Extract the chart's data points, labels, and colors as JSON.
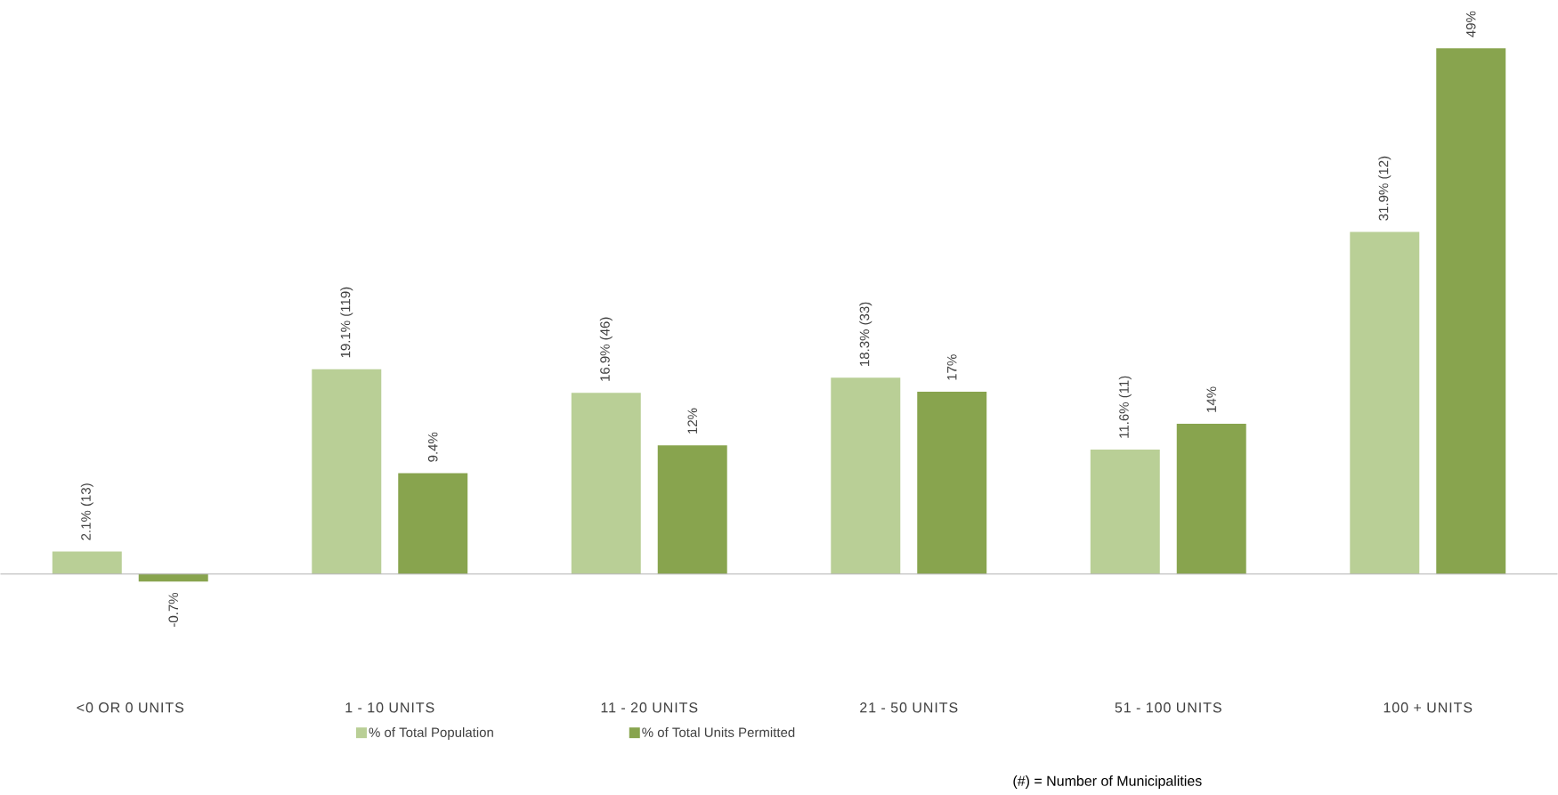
{
  "chart_data": {
    "type": "bar",
    "categories": [
      "<0 OR 0 UNITS",
      "1 - 10 UNITS",
      "11 - 20 UNITS",
      "21 - 50 UNITS",
      "51 - 100 UNITS",
      "100 + UNITS"
    ],
    "series": [
      {
        "name": "% of Total Population",
        "color": "#b9cf96",
        "values": [
          2.1,
          19.1,
          16.9,
          18.3,
          11.6,
          31.9
        ],
        "value_labels": [
          "2.1% (13)",
          "19.1% (119)",
          "16.9% (46)",
          "18.3% (33)",
          "11.6% (11)",
          "31.9% (12)"
        ]
      },
      {
        "name": "% of Total Units Permitted",
        "color": "#88a44e",
        "values": [
          -0.7,
          9.4,
          12,
          17,
          14,
          49
        ],
        "value_labels": [
          "-0.7%",
          "9.4%",
          "12%",
          "17%",
          "14%",
          "49%"
        ]
      }
    ],
    "legend": "bottom",
    "annotations": [
      "(#) = Number of Municipalities"
    ]
  }
}
